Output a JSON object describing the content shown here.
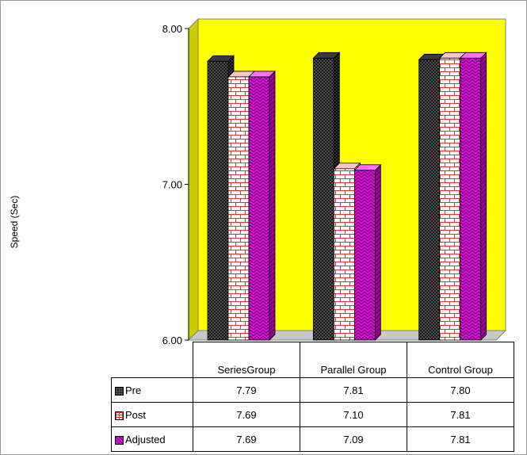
{
  "chart_data": {
    "type": "bar",
    "title": "",
    "ylabel": "Speed (Sec)",
    "xlabel": "",
    "categories": [
      "SeriesGroup",
      "Parallel Group",
      "Control Group"
    ],
    "ylim": [
      6.0,
      8.0
    ],
    "yticks": [
      "6.00",
      "7.00",
      "8.00"
    ],
    "series": [
      {
        "name": "Pre",
        "values": [
          7.79,
          7.81,
          7.8
        ],
        "labels": [
          "7.79",
          "7.81",
          "7.80"
        ],
        "color": "#1a1a1a",
        "pattern": "dots"
      },
      {
        "name": "Post",
        "values": [
          7.69,
          7.1,
          7.81
        ],
        "labels": [
          "7.69",
          "7.10",
          "7.81"
        ],
        "color": "#e03030",
        "pattern": "brick"
      },
      {
        "name": "Adjusted",
        "values": [
          7.69,
          7.09,
          7.81
        ],
        "labels": [
          "7.69",
          "7.09",
          "7.81"
        ],
        "color": "#e010e0",
        "pattern": "zigzag"
      }
    ],
    "grid": false,
    "legend": "data-table",
    "plot_background": "#ffff00",
    "style": "3d-clustered-bar-with-data-table"
  }
}
